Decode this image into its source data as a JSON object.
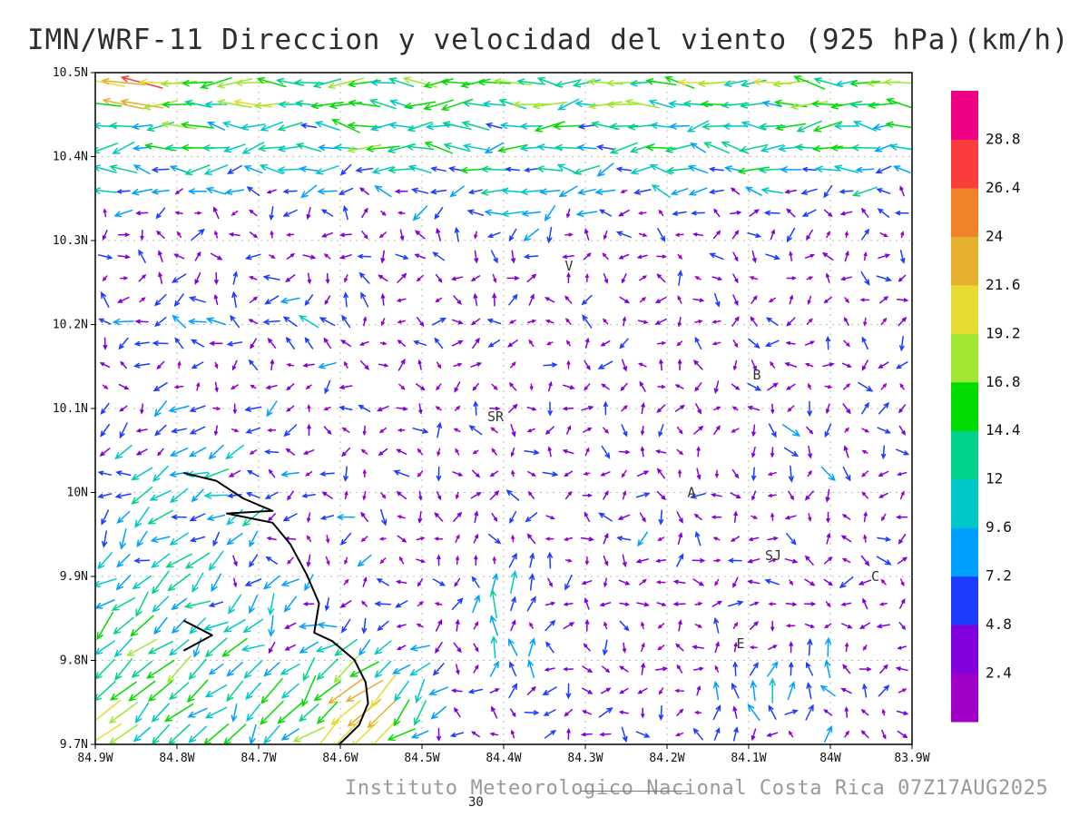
{
  "title": "IMN/WRF-11 Direccion y velocidad del viento (925 hPa)(km/h)",
  "footer": {
    "caption": "Instituto Meteorologico Nacional Costa Rica 07Z17AUG2025",
    "frame_number": "30"
  },
  "chart_data": {
    "type": "vector_field",
    "title": "IMN/WRF-11 Direccion y velocidad del viento (925 hPa)(km/h)",
    "model": "IMN/WRF-11",
    "variable": "Direccion y velocidad del viento",
    "level": "925 hPa",
    "units": "km/h",
    "valid_time": "07Z17AUG2025",
    "source": "Instituto Meteorologico Nacional Costa Rica",
    "x_axis": {
      "min": -84.9,
      "max": -83.9,
      "ticks": [
        "84.9W",
        "84.8W",
        "84.7W",
        "84.6W",
        "84.5W",
        "84.4W",
        "84.3W",
        "84.2W",
        "84.1W",
        "84W",
        "83.9W"
      ]
    },
    "y_axis": {
      "min": 9.7,
      "max": 10.5,
      "ticks_top_to_bottom": [
        "10.5N",
        "10.4N",
        "10.3N",
        "10.2N",
        "10.1N",
        "10N",
        "9.9N",
        "9.8N",
        "9.7N"
      ]
    },
    "grid_step_deg": 0.1,
    "grid_style": "dashed",
    "colorbar": {
      "levels": [
        2.4,
        4.8,
        7.2,
        9.6,
        12,
        14.4,
        16.8,
        19.2,
        21.6,
        24,
        26.4,
        28.8
      ],
      "colors": [
        "#a000c8",
        "#8200dc",
        "#1e3cff",
        "#00a0ff",
        "#00c8c8",
        "#00d28c",
        "#00dc00",
        "#a0e632",
        "#e6dc32",
        "#e6af2d",
        "#f08228",
        "#fa3c3c",
        "#f00082"
      ]
    },
    "stations": [
      {
        "label": "V",
        "lon": -84.32,
        "lat": 10.27
      },
      {
        "label": "B",
        "lon": -84.09,
        "lat": 10.14
      },
      {
        "label": "SR",
        "lon": -84.41,
        "lat": 10.09
      },
      {
        "label": "A",
        "lon": -84.17,
        "lat": 10.0
      },
      {
        "label": "SJ",
        "lon": -84.07,
        "lat": 9.925
      },
      {
        "label": "C",
        "lon": -83.945,
        "lat": 9.9
      },
      {
        "label": "E",
        "lon": -84.11,
        "lat": 9.82
      }
    ],
    "coastlines": [
      [
        [
          -84.791,
          10.023
        ],
        [
          -84.752,
          10.014
        ],
        [
          -84.719,
          9.993
        ],
        [
          -84.683,
          9.978
        ],
        [
          -84.739,
          9.975
        ],
        [
          -84.683,
          9.964
        ],
        [
          -84.661,
          9.938
        ],
        [
          -84.641,
          9.902
        ],
        [
          -84.626,
          9.868
        ],
        [
          -84.632,
          9.833
        ],
        [
          -84.61,
          9.823
        ],
        [
          -84.583,
          9.801
        ],
        [
          -84.569,
          9.774
        ],
        [
          -84.566,
          9.749
        ],
        [
          -84.577,
          9.723
        ],
        [
          -84.598,
          9.703
        ],
        [
          -84.602,
          9.7
        ]
      ],
      [
        [
          -84.791,
          9.847
        ],
        [
          -84.757,
          9.83
        ],
        [
          -84.791,
          9.812
        ]
      ]
    ],
    "wind_grid": {
      "nx": 44,
      "ny": 31,
      "lon_start": -84.888,
      "lon_end": -83.912,
      "lat_start": 9.712,
      "lat_end": 10.488
    },
    "flow_features": [
      {
        "kind": "band",
        "lat0": 10.31,
        "lat1": 10.41,
        "u": -12,
        "v": 0
      },
      {
        "kind": "band",
        "lat0": 10.43,
        "lat1": 10.5,
        "u": -4,
        "v": 0
      },
      {
        "kind": "corner_sw",
        "lon0": -84.52,
        "lat0": 10.18,
        "lon_scale": 0.3,
        "lat_scale": 0.42,
        "u": -11,
        "v": -10
      },
      {
        "kind": "gauss",
        "lon": -84.56,
        "lat": 9.76,
        "sx": 0.09,
        "sy": 0.07,
        "u": -11,
        "v": -11
      },
      {
        "kind": "gauss",
        "lon": -84.58,
        "lat": 9.73,
        "sx": 0.06,
        "sy": 0.04,
        "u": -6,
        "v": -6
      },
      {
        "kind": "gauss",
        "lon": -84.86,
        "lat": 10.48,
        "sx": 0.06,
        "sy": 0.035,
        "u": -7,
        "v": 2
      },
      {
        "kind": "gauss",
        "lon": -84.78,
        "lat": 10.02,
        "sx": 0.1,
        "sy": 0.06,
        "u": -6,
        "v": 0
      },
      {
        "kind": "gauss",
        "lon": -84.8,
        "lat": 10.2,
        "sx": 0.12,
        "sy": 0.05,
        "u": -5,
        "v": 0
      },
      {
        "kind": "gauss",
        "lon": -84.63,
        "lat": 10.2,
        "sx": 0.07,
        "sy": 0.05,
        "u": -5,
        "v": 3
      },
      {
        "kind": "gauss",
        "lon": -84.38,
        "lat": 10.33,
        "sx": 0.07,
        "sy": 0.05,
        "u": -4,
        "v": -4
      },
      {
        "kind": "gauss",
        "lon": -84.4,
        "lat": 9.84,
        "sx": 0.045,
        "sy": 0.07,
        "u": 1,
        "v": 10
      },
      {
        "kind": "gauss",
        "lon": -84.07,
        "lat": 9.77,
        "sx": 0.09,
        "sy": 0.045,
        "u": 0,
        "v": 9
      },
      {
        "kind": "gauss",
        "lon": -84.05,
        "lat": 10.04,
        "sx": 0.06,
        "sy": 0.06,
        "u": 2,
        "v": -6
      },
      {
        "kind": "swirl",
        "amp": 2.2,
        "fx": 55,
        "fy": 38
      },
      {
        "kind": "noise",
        "amp_min": 1.2,
        "amp_max": 4.5
      }
    ]
  }
}
